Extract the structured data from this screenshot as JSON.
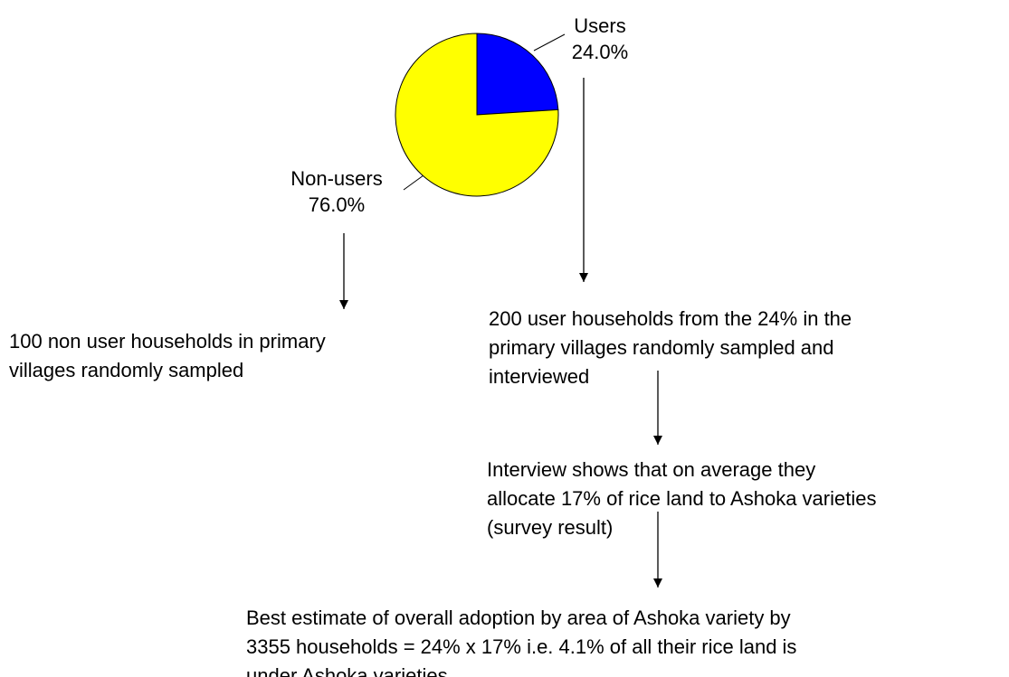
{
  "chart_data": {
    "type": "pie",
    "categories": [
      "Users",
      "Non-users"
    ],
    "values": [
      24,
      76
    ],
    "value_labels": [
      "24.0%",
      "76.0%"
    ],
    "colors": [
      "#0000ff",
      "#ffff00"
    ]
  },
  "boxes": [
    {
      "lines": [
        "100 non user households in primary",
        "villages randomly sampled"
      ]
    },
    {
      "lines": [
        "200 user households from the 24% in the",
        "primary villages randomly sampled and",
        "interviewed"
      ]
    },
    {
      "lines": [
        "Interview shows that on average they",
        "allocate 17% of rice land to Ashoka varieties",
        "(survey result)"
      ]
    },
    {
      "lines": [
        "Best estimate of overall adoption by area of Ashoka variety by",
        "3355 households = 24% x 17% i.e. 4.1% of all their rice land is",
        "under Ashoka varieties"
      ]
    }
  ]
}
